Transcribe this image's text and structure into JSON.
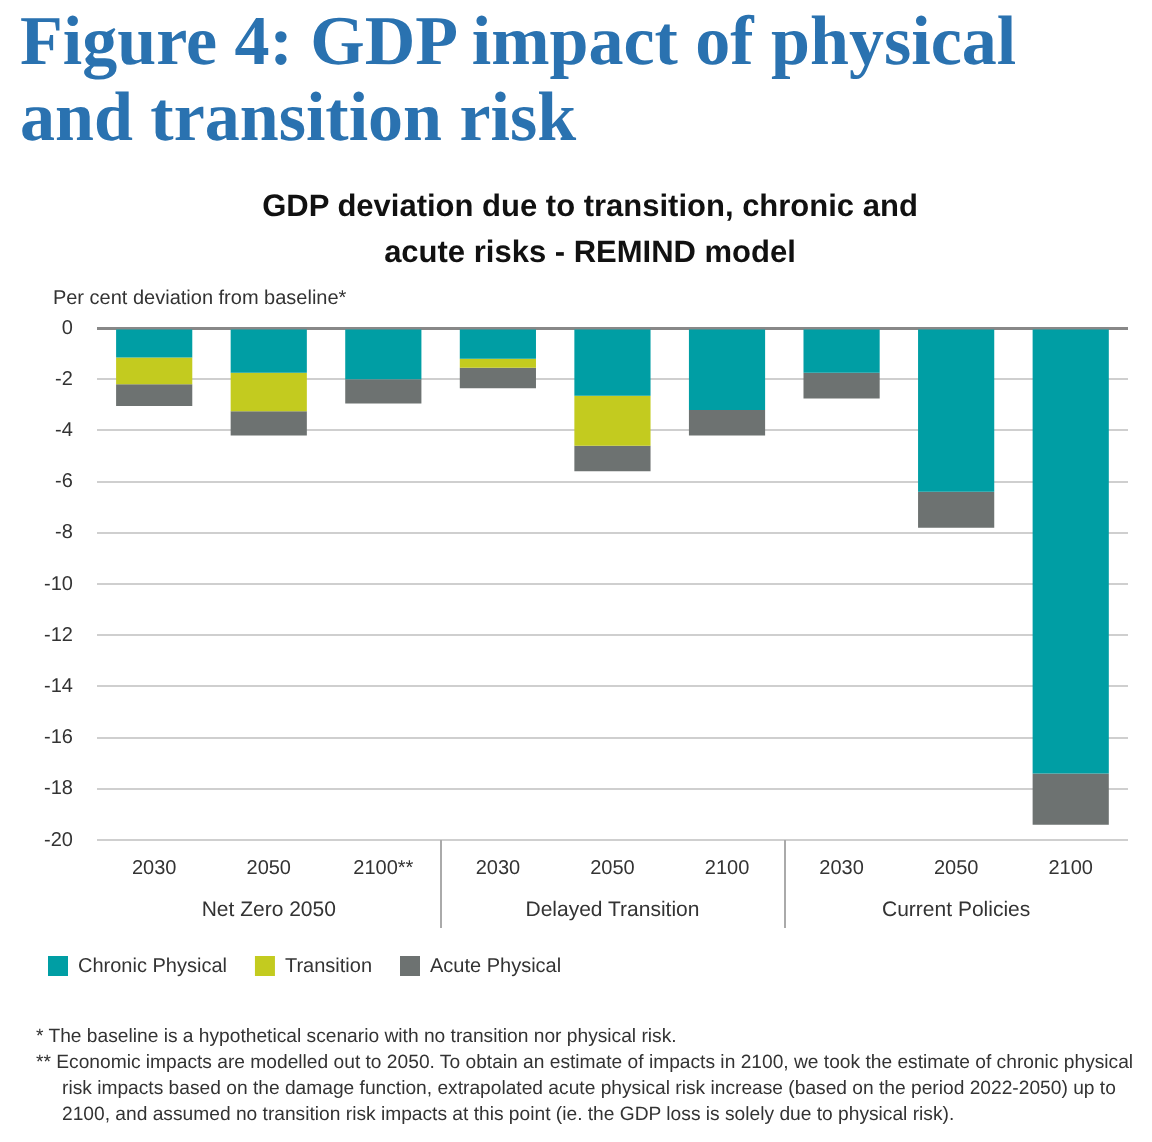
{
  "chart_data": {
    "type": "bar",
    "stacked": true,
    "title": "Figure 4: GDP impact of physical and transition risk",
    "subtitle": "GDP deviation due to transition, chronic and acute risks - REMIND model",
    "ylabel": "Per cent deviation from baseline*",
    "categories": [
      "2030",
      "2050",
      "2100**",
      "2030",
      "2050",
      "2100",
      "2030",
      "2050",
      "2100"
    ],
    "series": [
      {
        "name": "Chronic Physical",
        "color": "#009ea4",
        "values": [
          -1.15,
          -1.75,
          -2.0,
          -1.2,
          -2.65,
          -3.2,
          -1.75,
          -6.4,
          -17.4
        ]
      },
      {
        "name": "Transition",
        "color": "#c3cb1f",
        "values": [
          -1.05,
          -1.5,
          null,
          -0.35,
          -1.95,
          null,
          null,
          null,
          null
        ]
      },
      {
        "name": "Acute Physical",
        "color": "#6d7271",
        "values": [
          -0.85,
          -0.95,
          -0.95,
          -0.8,
          -1.0,
          -1.0,
          -1.0,
          -1.4,
          -2.0
        ]
      }
    ],
    "ylim": [
      -20,
      0
    ],
    "yticks": [
      -20,
      -18,
      -16,
      -14,
      -12,
      -10,
      -8,
      -6,
      -4,
      -2,
      0
    ],
    "grid": "y",
    "legend": "bottom left",
    "annotations": [
      "Net Zero 2050",
      "Delayed Transition",
      "Current Policies",
      "* The baseline is a hypothetical scenario with no transition nor physical risk.",
      "** Economic impacts are modelled out to 2050. To obtain an estimate of impacts in 2100, we took the estimate of chronic physical risk impacts based on the damage function, extrapolated acute physical risk increase (based on the period 2022-2050) up to 2100, and assumed no transition risk impacts at this point (ie. the GDP loss is solely due to physical risk)."
    ]
  }
}
